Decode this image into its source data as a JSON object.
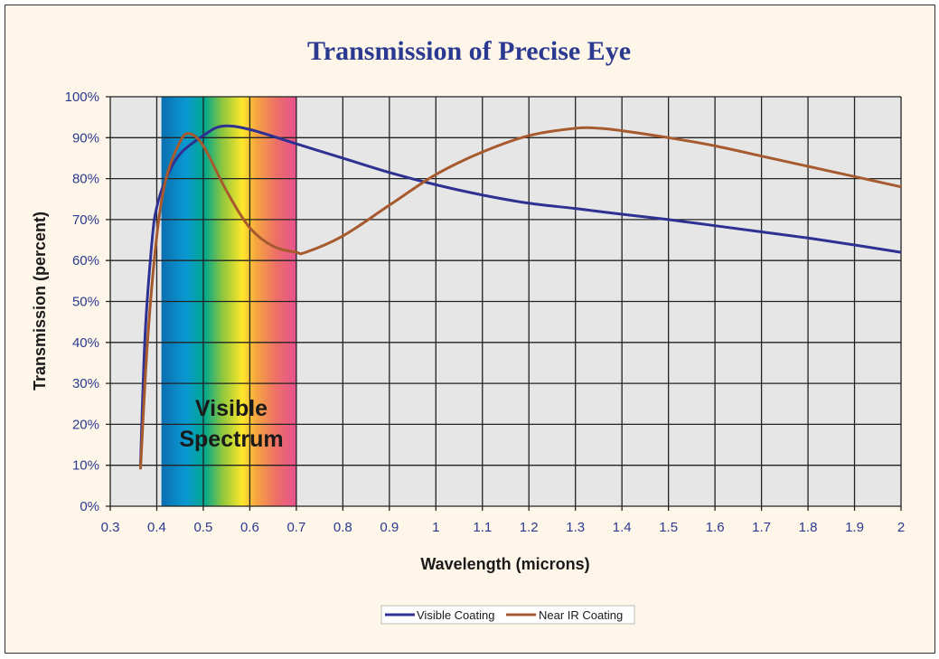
{
  "chart_data": {
    "type": "line",
    "title": "Transmission of Precise Eye",
    "xlabel": "Wavelength (microns)",
    "ylabel": "Transmission (percent)",
    "xlim": [
      0.3,
      2.0
    ],
    "ylim": [
      0,
      100
    ],
    "x_ticks": [
      "0.3",
      "0.4",
      "0.5",
      "0.6",
      "0.7",
      "0.8",
      "0.9",
      "1",
      "1.1",
      "1.2",
      "1.3",
      "1.4",
      "1.5",
      "1.6",
      "1.7",
      "1.8",
      "1.9",
      "2"
    ],
    "y_ticks": [
      "0%",
      "10%",
      "20%",
      "30%",
      "40%",
      "50%",
      "60%",
      "70%",
      "80%",
      "90%",
      "100%"
    ],
    "grid": true,
    "legend_position": "bottom-center",
    "annotation": {
      "line1": "Visible",
      "line2": "Spectrum",
      "range": [
        0.41,
        0.7
      ]
    },
    "series": [
      {
        "name": "Visible Coating",
        "color": "#2e3192",
        "x": [
          0.365,
          0.375,
          0.39,
          0.4,
          0.42,
          0.45,
          0.5,
          0.54,
          0.6,
          0.7,
          0.8,
          0.9,
          1.0,
          1.1,
          1.2,
          1.3,
          1.4,
          1.5,
          1.6,
          1.7,
          1.8,
          1.9,
          2.0
        ],
        "y": [
          10,
          42,
          65,
          73,
          80,
          86,
          90.5,
          92.8,
          92,
          88.5,
          85,
          81.5,
          78.5,
          76,
          74,
          72.7,
          71.3,
          70,
          68.5,
          67,
          65.5,
          63.8,
          62
        ]
      },
      {
        "name": "Near IR Coating",
        "color": "#a65a2e",
        "x": [
          0.365,
          0.38,
          0.4,
          0.42,
          0.45,
          0.47,
          0.5,
          0.55,
          0.6,
          0.65,
          0.7,
          0.72,
          0.8,
          0.9,
          1.0,
          1.1,
          1.2,
          1.3,
          1.35,
          1.4,
          1.5,
          1.6,
          1.7,
          1.8,
          1.9,
          2.0
        ],
        "y": [
          9,
          40,
          66,
          80,
          89,
          91,
          88,
          77,
          68,
          63.5,
          62,
          62,
          66,
          73.5,
          81,
          86.5,
          90.5,
          92.3,
          92.3,
          91.7,
          90,
          88,
          85.5,
          83,
          80.5,
          78
        ]
      }
    ]
  }
}
